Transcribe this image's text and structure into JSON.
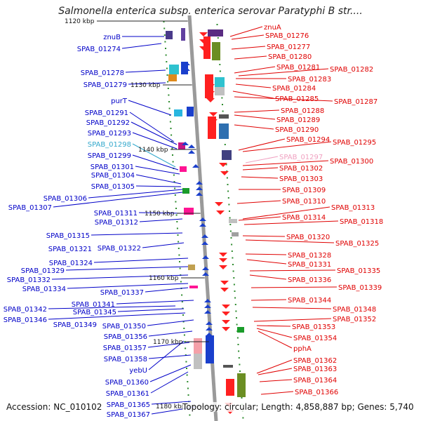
{
  "title": "Salmonella enterica subsp. enterica serovar Paratyphi B str....",
  "footer": {
    "accession": "Accession: NC_010102",
    "summary": "Topology: circular; Length: 4,858,887 bp; Genes: 5,740"
  },
  "colors": {
    "left_label": "#0000c8",
    "right_label": "#e00000",
    "highlight_left": "#33a8cc",
    "highlight_right": "#f0a0c0",
    "backbone": "#9a9a9a",
    "tick": "#2e8b2e"
  },
  "scale_ticks": [
    "1120 kbp",
    "1130 kbp",
    "1140 kbp",
    "1150 kbp",
    "1160 kbp",
    "1170 kbp",
    "1180 kbp"
  ],
  "left_labels": [
    {
      "text": "znuB"
    },
    {
      "text": "SPAB_01274"
    },
    {
      "text": "SPAB_01278"
    },
    {
      "text": "SPAB_01279"
    },
    {
      "text": "purT"
    },
    {
      "text": "SPAB_01291"
    },
    {
      "text": "SPAB_01292"
    },
    {
      "text": "SPAB_01293"
    },
    {
      "text": "SPAB_01298",
      "highlight": true
    },
    {
      "text": "SPAB_01299"
    },
    {
      "text": "SPAB_01301"
    },
    {
      "text": "SPAB_01304"
    },
    {
      "text": "SPAB_01305"
    },
    {
      "text": "SPAB_01306"
    },
    {
      "text": "SPAB_01307"
    },
    {
      "text": "SPAB_01311"
    },
    {
      "text": "SPAB_01312"
    },
    {
      "text": "SPAB_01315"
    },
    {
      "text": "SPAB_01321"
    },
    {
      "text": "SPAB_01322"
    },
    {
      "text": "SPAB_01324"
    },
    {
      "text": "SPAB_01329"
    },
    {
      "text": "SPAB_01332"
    },
    {
      "text": "SPAB_01334"
    },
    {
      "text": "SPAB_01337"
    },
    {
      "text": "SPAB_01341"
    },
    {
      "text": "SPAB_01342"
    },
    {
      "text": "SPAB_01345"
    },
    {
      "text": "SPAB_01346"
    },
    {
      "text": "SPAB_01349"
    },
    {
      "text": "SPAB_01350"
    },
    {
      "text": "SPAB_01356"
    },
    {
      "text": "SPAB_01357"
    },
    {
      "text": "SPAB_01358"
    },
    {
      "text": "yebU"
    },
    {
      "text": "SPAB_01360"
    },
    {
      "text": "SPAB_01361"
    },
    {
      "text": "SPAB_01365"
    },
    {
      "text": "SPAB_01367"
    }
  ],
  "right_labels": [
    {
      "text": "znuA"
    },
    {
      "text": "SPAB_01276"
    },
    {
      "text": "SPAB_01277"
    },
    {
      "text": "SPAB_01280"
    },
    {
      "text": "SPAB_01281"
    },
    {
      "text": "SPAB_01282"
    },
    {
      "text": "SPAB_01283"
    },
    {
      "text": "SPAB_01284"
    },
    {
      "text": "SPAB_01285"
    },
    {
      "text": "SPAB_01287"
    },
    {
      "text": "SPAB_01288"
    },
    {
      "text": "SPAB_01289"
    },
    {
      "text": "SPAB_01290"
    },
    {
      "text": "SPAB_01294"
    },
    {
      "text": "SPAB_01295"
    },
    {
      "text": "SPAB_01297",
      "highlight": true
    },
    {
      "text": "SPAB_01300"
    },
    {
      "text": "SPAB_01302"
    },
    {
      "text": "SPAB_01303"
    },
    {
      "text": "SPAB_01309"
    },
    {
      "text": "SPAB_01310"
    },
    {
      "text": "SPAB_01313"
    },
    {
      "text": "SPAB_01314"
    },
    {
      "text": "SPAB_01318"
    },
    {
      "text": "SPAB_01320"
    },
    {
      "text": "SPAB_01325"
    },
    {
      "text": "SPAB_01328"
    },
    {
      "text": "SPAB_01331"
    },
    {
      "text": "SPAB_01335"
    },
    {
      "text": "SPAB_01336"
    },
    {
      "text": "SPAB_01339"
    },
    {
      "text": "SPAB_01344"
    },
    {
      "text": "SPAB_01348"
    },
    {
      "text": "SPAB_01352"
    },
    {
      "text": "SPAB_01353"
    },
    {
      "text": "SPAB_01354"
    },
    {
      "text": "pphA"
    },
    {
      "text": "SPAB_01362"
    },
    {
      "text": "SPAB_01363"
    },
    {
      "text": "SPAB_01364"
    },
    {
      "text": "SPAB_01366"
    }
  ]
}
